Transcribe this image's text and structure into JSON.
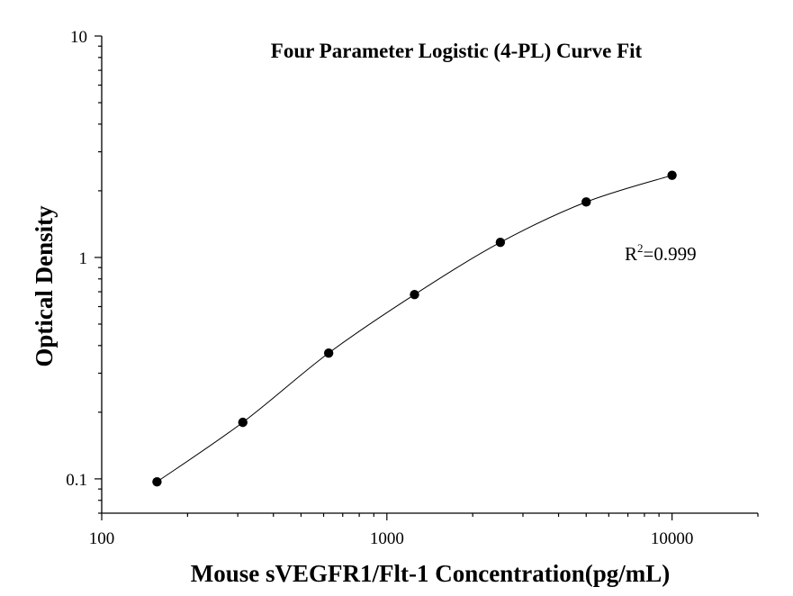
{
  "chart_data": {
    "type": "scatter",
    "title": "Four Parameter Logistic (4-PL) Curve Fit",
    "xlabel": "Mouse sVEGFR1/Flt-1 Concentration(pg/mL)",
    "ylabel": "Optical Density",
    "x_scale": "log",
    "y_scale": "log",
    "xlim": [
      100,
      20000
    ],
    "ylim": [
      0.07,
      10
    ],
    "x_ticks": [
      "100",
      "1000",
      "10000"
    ],
    "y_ticks": [
      "0.1",
      "1",
      "10"
    ],
    "series": [
      {
        "x": [
          156.25,
          312.5,
          625,
          1250,
          2500,
          5000,
          10000
        ],
        "y": [
          0.097,
          0.18,
          0.37,
          0.68,
          1.17,
          1.78,
          2.35
        ]
      }
    ],
    "fit_curve": "4-PL",
    "annotation": {
      "r_base": "R",
      "r_sup": "2",
      "r_value": "=0.999"
    }
  }
}
